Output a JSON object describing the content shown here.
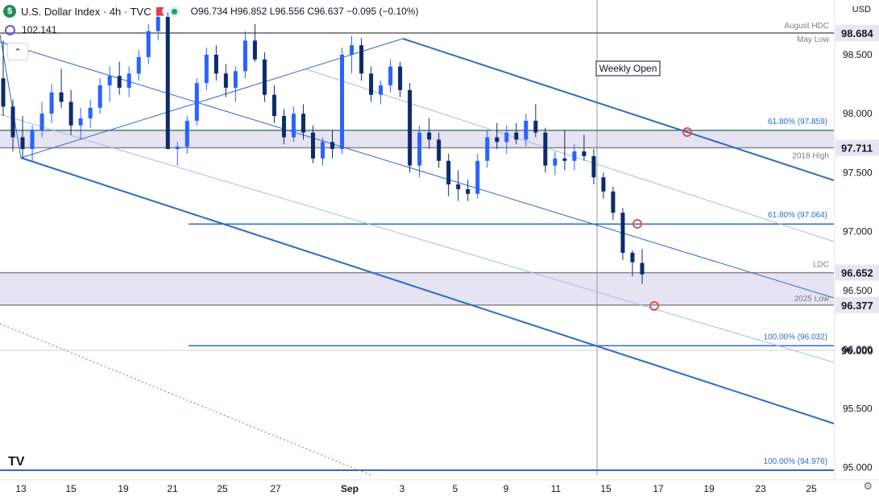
{
  "header": {
    "symbol_icon": "dollar-icon",
    "symbol_icon_glyph": "$",
    "title": "U.S. Dollar Index · 4h · TVC",
    "ohlc": "O96.734 H96.852 L96.556 C96.637 −0.095 (−0.10%)",
    "indicator_value": "102.141",
    "currency": "USD",
    "collapse_glyph": "⌃",
    "settings_glyph": "⚙"
  },
  "chart_data": {
    "type": "candlestick",
    "symbol": "U.S. Dollar Index",
    "interval": "4h",
    "source": "TVC",
    "ylim": [
      94.95,
      98.9
    ],
    "y_ticks": [
      95.0,
      95.5,
      96.0,
      96.5,
      97.0,
      97.5,
      98.0,
      98.5
    ],
    "x_tick_labels": [
      "13",
      "15",
      "19",
      "21",
      "25",
      "27",
      "Sep",
      "3",
      "5",
      "9",
      "11",
      "15",
      "17",
      "19",
      "23",
      "25"
    ],
    "price_tags": [
      {
        "value": "98.684",
        "highlight": true
      },
      {
        "value": "97.711",
        "highlight": true
      },
      {
        "value": "96.652",
        "highlight": true
      },
      {
        "value": "96.377",
        "highlight": true
      }
    ],
    "levels": [
      {
        "label": "August HDC",
        "value": 98.684
      },
      {
        "label": "May Low",
        "value": 98.684
      },
      {
        "label": "61.80% (97.859)",
        "value": 97.859
      },
      {
        "label": "2018 High",
        "value": 97.711
      },
      {
        "label": "61.80% (97.064)",
        "value": 97.064
      },
      {
        "label": "LDC",
        "value": 96.652
      },
      {
        "label": "2025 Low",
        "value": 96.377
      },
      {
        "label": "100.00% (96.032)",
        "value": 96.032
      },
      {
        "label": "100.00% (94.976)",
        "value": 94.976
      }
    ],
    "zones": [
      {
        "from": 97.711,
        "to": 97.859
      },
      {
        "from": 96.377,
        "to": 96.652
      }
    ],
    "annotations": [
      "Weekly Open"
    ],
    "candles": [
      [
        98.3,
        98.62,
        97.98,
        98.06
      ],
      [
        98.06,
        98.12,
        97.68,
        97.8
      ],
      [
        97.8,
        97.98,
        97.62,
        97.7
      ],
      [
        97.7,
        97.9,
        97.6,
        97.86
      ],
      [
        97.86,
        98.1,
        97.8,
        98.0
      ],
      [
        98.0,
        98.25,
        97.92,
        98.18
      ],
      [
        98.18,
        98.38,
        98.05,
        98.1
      ],
      [
        98.1,
        98.2,
        97.82,
        97.9
      ],
      [
        97.9,
        98.05,
        97.78,
        97.96
      ],
      [
        97.96,
        98.12,
        97.88,
        98.05
      ],
      [
        98.05,
        98.3,
        98.0,
        98.24
      ],
      [
        98.24,
        98.4,
        98.1,
        98.32
      ],
      [
        98.32,
        98.44,
        98.16,
        98.22
      ],
      [
        98.22,
        98.4,
        98.14,
        98.34
      ],
      [
        98.34,
        98.54,
        98.28,
        98.48
      ],
      [
        98.48,
        98.76,
        98.42,
        98.7
      ],
      [
        98.7,
        98.9,
        98.62,
        98.82
      ],
      [
        98.82,
        98.86,
        97.7,
        97.7
      ],
      [
        97.7,
        97.76,
        97.56,
        97.72
      ],
      [
        97.72,
        97.98,
        97.66,
        97.94
      ],
      [
        97.94,
        98.3,
        97.9,
        98.26
      ],
      [
        98.26,
        98.56,
        98.2,
        98.5
      ],
      [
        98.5,
        98.58,
        98.28,
        98.34
      ],
      [
        98.34,
        98.42,
        98.14,
        98.22
      ],
      [
        98.22,
        98.4,
        98.1,
        98.36
      ],
      [
        98.36,
        98.7,
        98.3,
        98.62
      ],
      [
        98.62,
        98.76,
        98.44,
        98.46
      ],
      [
        98.46,
        98.52,
        98.1,
        98.16
      ],
      [
        98.16,
        98.24,
        97.92,
        97.98
      ],
      [
        97.98,
        98.04,
        97.74,
        97.8
      ],
      [
        97.8,
        98.06,
        97.76,
        98.0
      ],
      [
        98.0,
        98.08,
        97.78,
        97.84
      ],
      [
        97.84,
        97.9,
        97.58,
        97.62
      ],
      [
        97.62,
        97.8,
        97.56,
        97.76
      ],
      [
        97.76,
        97.86,
        97.62,
        97.7
      ],
      [
        97.7,
        98.56,
        97.66,
        98.5
      ],
      [
        98.5,
        98.66,
        98.34,
        98.58
      ],
      [
        98.58,
        98.64,
        98.28,
        98.34
      ],
      [
        98.34,
        98.4,
        98.1,
        98.16
      ],
      [
        98.16,
        98.28,
        98.08,
        98.24
      ],
      [
        98.24,
        98.46,
        98.18,
        98.4
      ],
      [
        98.4,
        98.44,
        98.14,
        98.2
      ],
      [
        98.2,
        98.26,
        97.5,
        97.56
      ],
      [
        97.56,
        97.9,
        97.46,
        97.84
      ],
      [
        97.84,
        97.96,
        97.7,
        97.78
      ],
      [
        97.78,
        97.84,
        97.54,
        97.6
      ],
      [
        97.6,
        97.66,
        97.3,
        97.4
      ],
      [
        97.4,
        97.52,
        97.26,
        97.36
      ],
      [
        97.36,
        97.44,
        97.26,
        97.32
      ],
      [
        97.32,
        97.66,
        97.28,
        97.6
      ],
      [
        97.6,
        97.86,
        97.54,
        97.8
      ],
      [
        97.8,
        97.92,
        97.7,
        97.76
      ],
      [
        97.76,
        97.9,
        97.66,
        97.84
      ],
      [
        97.84,
        97.92,
        97.74,
        97.78
      ],
      [
        97.78,
        98.0,
        97.72,
        97.94
      ],
      [
        97.94,
        98.08,
        97.8,
        97.84
      ],
      [
        97.84,
        97.88,
        97.5,
        97.56
      ],
      [
        97.56,
        97.68,
        97.48,
        97.62
      ],
      [
        97.62,
        97.86,
        97.52,
        97.6
      ],
      [
        97.6,
        97.74,
        97.52,
        97.68
      ],
      [
        97.68,
        97.82,
        97.6,
        97.64
      ],
      [
        97.64,
        97.7,
        97.4,
        97.46
      ],
      [
        97.46,
        97.5,
        97.28,
        97.34
      ],
      [
        97.34,
        97.38,
        97.1,
        97.16
      ],
      [
        97.16,
        97.2,
        96.76,
        96.82
      ],
      [
        96.82,
        96.84,
        96.62,
        96.74
      ],
      [
        96.734,
        96.852,
        96.556,
        96.637
      ]
    ]
  }
}
